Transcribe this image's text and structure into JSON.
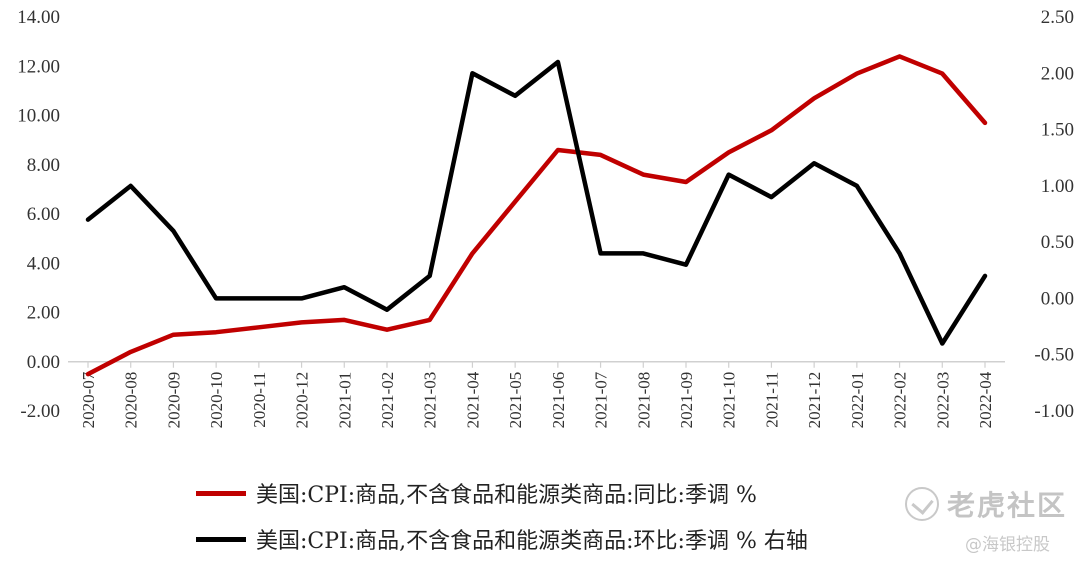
{
  "chart_data": {
    "type": "line",
    "x": [
      "2020-07",
      "2020-08",
      "2020-09",
      "2020-10",
      "2020-11",
      "2020-12",
      "2021-01",
      "2021-02",
      "2021-03",
      "2021-04",
      "2021-05",
      "2021-06",
      "2021-07",
      "2021-08",
      "2021-09",
      "2021-10",
      "2021-11",
      "2021-12",
      "2022-01",
      "2022-02",
      "2022-03",
      "2022-04"
    ],
    "left_axis": {
      "ticks": [
        "-2.00",
        "0.00",
        "2.00",
        "4.00",
        "6.00",
        "8.00",
        "10.00",
        "12.00",
        "14.00"
      ],
      "ylim": [
        -2,
        14
      ]
    },
    "right_axis": {
      "ticks": [
        "-1.00",
        "-0.50",
        "0.00",
        "0.50",
        "1.00",
        "1.50",
        "2.00",
        "2.50"
      ],
      "ylim": [
        -1,
        2.5
      ]
    },
    "series": [
      {
        "name": "美国:CPI:商品,不含食品和能源类商品:同比:季调 %",
        "axis": "left",
        "color": "#c00000",
        "values": [
          -0.5,
          0.4,
          1.1,
          1.2,
          1.4,
          1.6,
          1.7,
          1.3,
          1.7,
          4.4,
          6.5,
          8.6,
          8.4,
          7.6,
          7.3,
          8.5,
          9.4,
          10.7,
          11.7,
          12.4,
          11.7,
          9.7
        ]
      },
      {
        "name": "美国:CPI:商品,不含食品和能源类商品:环比:季调 % 右轴",
        "axis": "right",
        "color": "#000000",
        "values": [
          0.7,
          1.0,
          0.6,
          0.0,
          0.0,
          0.0,
          0.1,
          -0.1,
          0.2,
          2.0,
          1.8,
          2.1,
          0.4,
          0.4,
          0.3,
          1.1,
          0.9,
          1.2,
          1.0,
          0.4,
          -0.4,
          0.2
        ]
      }
    ],
    "legend_position": "bottom",
    "grid": false
  },
  "watermark": {
    "brand": "老虎社区",
    "author": "@海银控股"
  }
}
